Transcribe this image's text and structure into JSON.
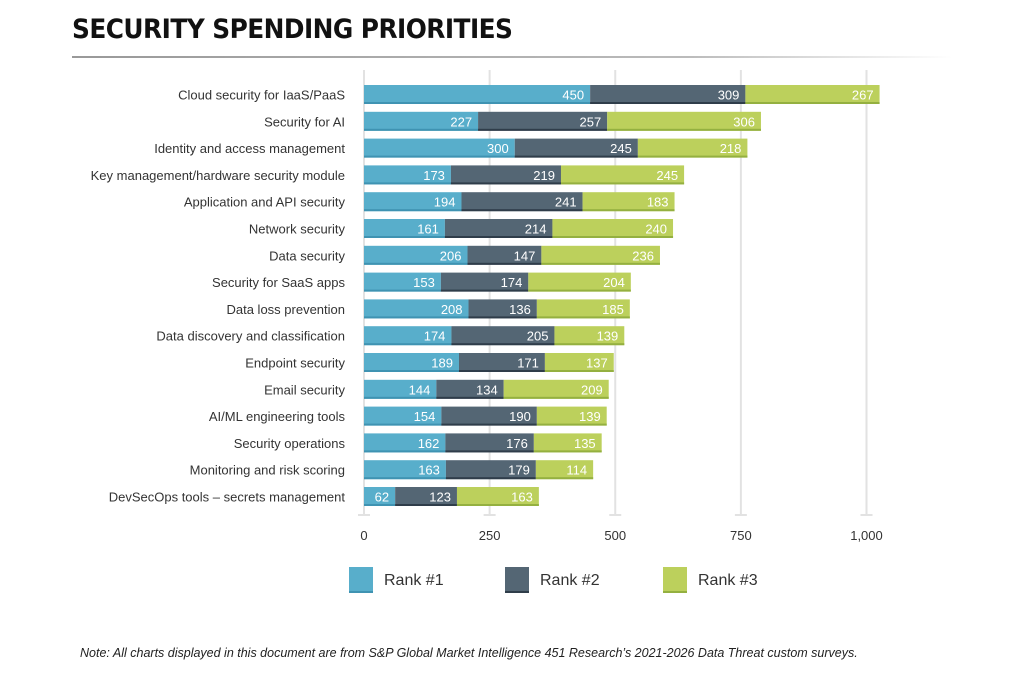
{
  "header": {
    "title": "SECURITY SPENDING PRIORITIES"
  },
  "note": "Note: All charts displayed in this document are from S&P Global Market Intelligence 451 Research’s 2021-2026 Data Threat custom surveys.",
  "chart_data": {
    "type": "bar",
    "orientation": "horizontal",
    "stacked": true,
    "title": "SECURITY SPENDING PRIORITIES",
    "xlabel": "",
    "ylabel": "",
    "xlim": [
      0,
      1000
    ],
    "xticks": [
      0,
      250,
      500,
      750,
      1000
    ],
    "xtick_labels": [
      "0",
      "250",
      "500",
      "750",
      "1,000"
    ],
    "grid": true,
    "legend_position": "bottom",
    "categories": [
      "Cloud security for IaaS/PaaS",
      "Security for AI",
      "Identity and access management",
      "Key management/hardware security module",
      "Application and API security",
      "Network security",
      "Data security",
      "Security for SaaS apps",
      "Data loss prevention",
      "Data discovery and classification",
      "Endpoint security",
      "Email security",
      "AI/ML engineering tools",
      "Security operations",
      "Monitoring and risk scoring",
      "DevSecOps tools – secrets management"
    ],
    "series": [
      {
        "name": "Rank #1",
        "color": "#58AECB",
        "values": [
          450,
          227,
          300,
          173,
          194,
          161,
          206,
          153,
          208,
          174,
          189,
          144,
          154,
          162,
          163,
          62
        ]
      },
      {
        "name": "Rank #2",
        "color": "#546674",
        "values": [
          309,
          257,
          245,
          219,
          241,
          214,
          147,
          174,
          136,
          205,
          171,
          134,
          190,
          176,
          179,
          123
        ]
      },
      {
        "name": "Rank #3",
        "color": "#BCD05C",
        "values": [
          267,
          306,
          218,
          245,
          183,
          240,
          236,
          204,
          185,
          139,
          137,
          209,
          139,
          135,
          114,
          163
        ]
      }
    ]
  }
}
